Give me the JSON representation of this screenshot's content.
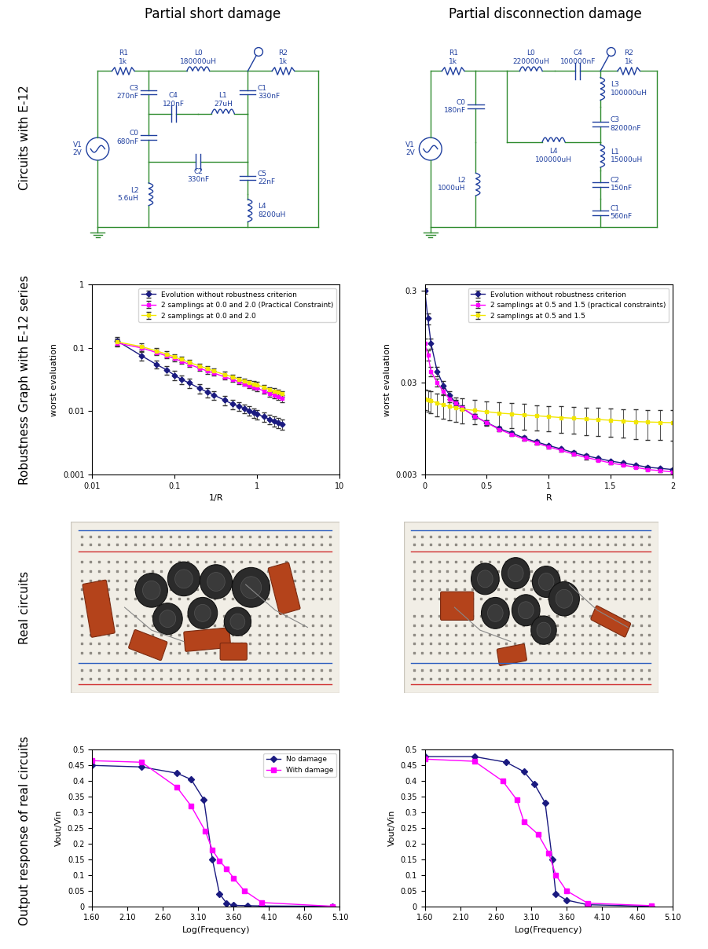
{
  "column_titles": [
    "Partial short damage",
    "Partial disconnection damage"
  ],
  "row_labels": [
    "Circuits with E-12",
    "Robustness Graph with E-12 series",
    "Real circuits",
    "Output response of real circuits"
  ],
  "circuits": [
    {
      "components": [
        {
          "name": "V1",
          "value": "2V"
        },
        {
          "name": "R1",
          "value": "1k"
        },
        {
          "name": "L0",
          "value": "180000uH"
        },
        {
          "name": "R2",
          "value": "1k"
        },
        {
          "name": "C3",
          "value": "270nF"
        },
        {
          "name": "C4",
          "value": "120nF"
        },
        {
          "name": "L1",
          "value": "27uH"
        },
        {
          "name": "C1",
          "value": "330nF"
        },
        {
          "name": "C0",
          "value": "680nF"
        },
        {
          "name": "C2",
          "value": "330nF"
        },
        {
          "name": "L2",
          "value": "5.6uH"
        },
        {
          "name": "C5",
          "value": "22nF"
        },
        {
          "name": "L4",
          "value": "8200uH"
        }
      ]
    },
    {
      "components": [
        {
          "name": "V1",
          "value": "2V"
        },
        {
          "name": "R1",
          "value": "1k"
        },
        {
          "name": "C0",
          "value": "180nF"
        },
        {
          "name": "L2",
          "value": "1000uH"
        },
        {
          "name": "L0",
          "value": "220000uH"
        },
        {
          "name": "C4",
          "value": "100000nF"
        },
        {
          "name": "R2",
          "value": "1k"
        },
        {
          "name": "L3",
          "value": "100000uH"
        },
        {
          "name": "C3",
          "value": "82000nF"
        },
        {
          "name": "L4",
          "value": "100000uH"
        },
        {
          "name": "L1",
          "value": "15000uH"
        },
        {
          "name": "C2",
          "value": "150nF"
        },
        {
          "name": "C1",
          "value": "560nF"
        }
      ]
    }
  ],
  "chart_data": [
    {
      "type": "line",
      "log": true,
      "grid": false,
      "legend": "upper right",
      "xlabel": "1/R",
      "ylabel": "worst evaluation",
      "xlim": [
        0.01,
        10
      ],
      "ylim": [
        0.001,
        1
      ],
      "xticks": [
        0.01,
        0.1,
        1,
        10
      ],
      "yticks": [
        0.001,
        0.01,
        0.1,
        1
      ],
      "x": [
        0.02,
        0.04,
        0.06,
        0.08,
        0.1,
        0.12,
        0.15,
        0.2,
        0.25,
        0.3,
        0.4,
        0.5,
        0.6,
        0.7,
        0.8,
        0.9,
        1.0,
        1.2,
        1.4,
        1.6,
        1.8,
        2.0
      ],
      "series": [
        {
          "name": "Evolution without robustness criterion",
          "color": "#1a1a80",
          "marker": "diamond",
          "line_style": "solid",
          "values": [
            0.13,
            0.075,
            0.055,
            0.045,
            0.037,
            0.032,
            0.028,
            0.023,
            0.02,
            0.018,
            0.015,
            0.013,
            0.012,
            0.011,
            0.0102,
            0.0095,
            0.009,
            0.0082,
            0.0075,
            0.007,
            0.0066,
            0.0062
          ],
          "errors": [
            0.02,
            0.012,
            0.008,
            0.007,
            0.006,
            0.005,
            0.0045,
            0.004,
            0.0035,
            0.003,
            0.0025,
            0.0022,
            0.002,
            0.0018,
            0.0017,
            0.0016,
            0.0015,
            0.0014,
            0.0013,
            0.0012,
            0.0012,
            0.0011
          ]
        },
        {
          "name": "2 samplings at 0.0 and 2.0 (Practical Constraint)",
          "color": "#ff00ff",
          "marker": "square",
          "line_style": "solid",
          "values": [
            0.12,
            0.1,
            0.085,
            0.075,
            0.068,
            0.062,
            0.055,
            0.048,
            0.043,
            0.04,
            0.035,
            0.032,
            0.029,
            0.027,
            0.025,
            0.024,
            0.023,
            0.021,
            0.019,
            0.018,
            0.017,
            0.016
          ],
          "errors": [
            0.015,
            0.01,
            0.008,
            0.007,
            0.006,
            0.005,
            0.005,
            0.004,
            0.004,
            0.003,
            0.003,
            0.003,
            0.002,
            0.002,
            0.002,
            0.002,
            0.002,
            0.002,
            0.002,
            0.002,
            0.002,
            0.002
          ]
        },
        {
          "name": "2 samplings at 0.0 and 2.0",
          "color": "#f2e600",
          "marker": "square",
          "line_style": "solid",
          "values": [
            0.125,
            0.105,
            0.09,
            0.08,
            0.072,
            0.066,
            0.059,
            0.052,
            0.047,
            0.043,
            0.038,
            0.035,
            0.032,
            0.03,
            0.028,
            0.027,
            0.026,
            0.024,
            0.022,
            0.021,
            0.02,
            0.019
          ],
          "errors": [
            0.015,
            0.012,
            0.01,
            0.008,
            0.007,
            0.006,
            0.006,
            0.005,
            0.005,
            0.004,
            0.004,
            0.003,
            0.003,
            0.003,
            0.003,
            0.003,
            0.003,
            0.002,
            0.002,
            0.002,
            0.002,
            0.002
          ]
        }
      ]
    },
    {
      "type": "line",
      "log": "y",
      "grid": false,
      "legend": "upper right",
      "xlabel": "R",
      "ylabel": "worst evaluation",
      "xlim": [
        0,
        2
      ],
      "ylim": [
        0.003,
        0.35
      ],
      "xticks": [
        0,
        0.5,
        1,
        1.5,
        2
      ],
      "yticks": [
        0.003,
        0.03,
        0.3
      ],
      "x": [
        0,
        0.025,
        0.05,
        0.1,
        0.15,
        0.2,
        0.25,
        0.3,
        0.4,
        0.5,
        0.6,
        0.7,
        0.8,
        0.9,
        1.0,
        1.1,
        1.2,
        1.3,
        1.4,
        1.5,
        1.6,
        1.7,
        1.8,
        1.9,
        2.0
      ],
      "series": [
        {
          "name": "Evolution without robustness criterion",
          "color": "#1a1a80",
          "marker": "diamond",
          "line_style": "solid",
          "values": [
            0.3,
            0.15,
            0.08,
            0.04,
            0.028,
            0.022,
            0.018,
            0.016,
            0.013,
            0.011,
            0.0095,
            0.0085,
            0.0075,
            0.0068,
            0.0062,
            0.0057,
            0.0052,
            0.0048,
            0.0045,
            0.0042,
            0.004,
            0.0038,
            0.0036,
            0.0035,
            0.0034
          ],
          "errors": [
            0.02,
            0.02,
            0.01,
            0.005,
            0.003,
            0.002,
            0.0015,
            0.001,
            0.0008,
            0.0006,
            0.0005,
            0.0004,
            0.0003,
            0.0003,
            0.0002,
            0.0002,
            0.0002,
            0.0002,
            0.0001,
            0.0001,
            0.0001,
            0.0001,
            0.0001,
            0.0001,
            0.0001
          ]
        },
        {
          "name": "2 samplings at 0.5 and 1.5 (practical constraints)",
          "color": "#ff00ff",
          "marker": "square",
          "line_style": "solid",
          "values": [
            0.08,
            0.06,
            0.04,
            0.03,
            0.024,
            0.02,
            0.018,
            0.016,
            0.013,
            0.011,
            0.0093,
            0.0082,
            0.0073,
            0.0066,
            0.006,
            0.0055,
            0.005,
            0.0046,
            0.0043,
            0.004,
            0.0038,
            0.0036,
            0.0034,
            0.0033,
            0.0032
          ],
          "errors": [
            0.01,
            0.008,
            0.005,
            0.003,
            0.002,
            0.0015,
            0.001,
            0.001,
            0.0008,
            0.0006,
            0.0005,
            0.0004,
            0.0003,
            0.0003,
            0.0002,
            0.0002,
            0.0002,
            0.0002,
            0.0001,
            0.0001,
            0.0001,
            0.0001,
            0.0001,
            0.0001,
            0.0001
          ]
        },
        {
          "name": "2 samplings at 0.5 and 1.5",
          "color": "#f2e600",
          "marker": "square",
          "line_style": "solid",
          "values": [
            0.02,
            0.0195,
            0.019,
            0.018,
            0.0172,
            0.0165,
            0.016,
            0.0155,
            0.015,
            0.0145,
            0.014,
            0.0137,
            0.0134,
            0.0131,
            0.0128,
            0.0125,
            0.0123,
            0.0121,
            0.0119,
            0.0117,
            0.0115,
            0.0113,
            0.0112,
            0.0111,
            0.011
          ],
          "errors": [
            0.005,
            0.005,
            0.005,
            0.005,
            0.005,
            0.0048,
            0.0047,
            0.0046,
            0.0045,
            0.0044,
            0.0043,
            0.0042,
            0.0041,
            0.004,
            0.004,
            0.004,
            0.004,
            0.004,
            0.004,
            0.004,
            0.004,
            0.004,
            0.004,
            0.004,
            0.004
          ]
        }
      ]
    },
    {
      "type": "line",
      "grid": false,
      "legend": "upper right",
      "xlabel": "Log(Frequency)",
      "ylabel": "Vout/Vin",
      "xlim": [
        1.6,
        5.1
      ],
      "ylim": [
        0,
        0.5
      ],
      "xticks": [
        {
          "value": 1.6,
          "label": "1.60"
        },
        {
          "value": 2.1,
          "label": "2.10"
        },
        {
          "value": 2.6,
          "label": "2.60"
        },
        {
          "value": 3.1,
          "label": "3.10"
        },
        {
          "value": 3.6,
          "label": "3.60"
        },
        {
          "value": 4.1,
          "label": "4.10"
        },
        {
          "value": 4.6,
          "label": "4.60"
        },
        {
          "value": 5.1,
          "label": "5.10"
        }
      ],
      "yticks": [
        0,
        0.05,
        0.1,
        0.15,
        0.2,
        0.25,
        0.3,
        0.35,
        0.4,
        0.45,
        0.5
      ],
      "series": [
        {
          "name": "No damage",
          "color": "#1a1a80",
          "marker": "diamond",
          "line_style": "solid",
          "x": [
            1.6,
            2.3,
            2.8,
            3.0,
            3.18,
            3.3,
            3.4,
            3.5,
            3.6,
            3.8,
            4.0,
            5.0
          ],
          "values": [
            0.45,
            0.445,
            0.425,
            0.405,
            0.34,
            0.15,
            0.04,
            0.01,
            0.003,
            0.002,
            0.001,
            0
          ]
        },
        {
          "name": "With damage",
          "color": "#ff00ff",
          "marker": "square",
          "line_style": "solid",
          "x": [
            1.6,
            2.3,
            2.8,
            3.0,
            3.2,
            3.3,
            3.4,
            3.5,
            3.6,
            3.75,
            4.0,
            5.0
          ],
          "values": [
            0.465,
            0.46,
            0.38,
            0.32,
            0.24,
            0.18,
            0.145,
            0.12,
            0.09,
            0.05,
            0.012,
            0
          ]
        }
      ]
    },
    {
      "type": "line",
      "grid": false,
      "xlabel": "Log(Frequency)",
      "ylabel": "Vout/Vin",
      "xlim": [
        1.6,
        5.1
      ],
      "ylim": [
        0,
        0.5
      ],
      "xticks": [
        {
          "value": 1.6,
          "label": "1.60"
        },
        {
          "value": 2.1,
          "label": "2.10"
        },
        {
          "value": 2.6,
          "label": "2.60"
        },
        {
          "value": 3.1,
          "label": "3.10"
        },
        {
          "value": 3.6,
          "label": "3.60"
        },
        {
          "value": 4.1,
          "label": "4.10"
        },
        {
          "value": 4.6,
          "label": "4.60"
        },
        {
          "value": 5.1,
          "label": "5.10"
        }
      ],
      "yticks": [
        0,
        0.05,
        0.1,
        0.15,
        0.2,
        0.25,
        0.3,
        0.35,
        0.4,
        0.45,
        0.5
      ],
      "series": [
        {
          "color": "#1a1a80",
          "marker": "diamond",
          "line_style": "solid",
          "x": [
            1.6,
            2.3,
            2.75,
            3.0,
            3.15,
            3.3,
            3.4,
            3.45,
            3.6,
            3.9,
            4.8
          ],
          "values": [
            0.478,
            0.478,
            0.46,
            0.43,
            0.39,
            0.33,
            0.15,
            0.04,
            0.02,
            0.005,
            0
          ]
        },
        {
          "color": "#ff00ff",
          "marker": "square",
          "line_style": "solid",
          "x": [
            1.6,
            2.3,
            2.7,
            2.9,
            3.0,
            3.2,
            3.35,
            3.45,
            3.6,
            3.9,
            4.8
          ],
          "values": [
            0.47,
            0.463,
            0.4,
            0.34,
            0.27,
            0.23,
            0.17,
            0.1,
            0.05,
            0.01,
            0.002
          ]
        }
      ]
    }
  ]
}
